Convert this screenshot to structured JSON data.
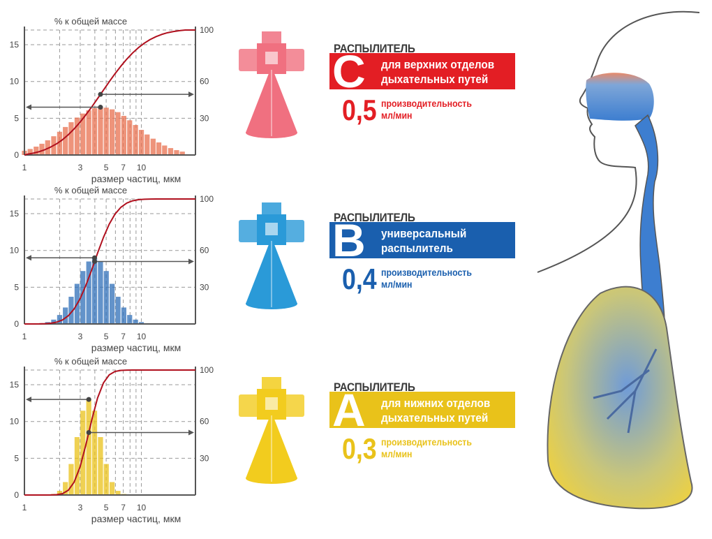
{
  "colors": {
    "red": "#e31e24",
    "blue": "#1a5fae",
    "yellow": "#e9c21a",
    "curve": "#b0101e",
    "axis": "#555555",
    "arrow": "#555555"
  },
  "chart_data": [
    {
      "type": "bar",
      "title": "% к общей массе",
      "xlabel": "размер частиц, мкм",
      "x_scale": "log",
      "xlim": [
        1,
        29
      ],
      "ylim": [
        0,
        17
      ],
      "x_ticks": [
        1,
        3,
        5,
        7,
        10
      ],
      "y_ticks_left": [
        0,
        5,
        10,
        15
      ],
      "y_ticks_right": [
        "30",
        "60",
        "100"
      ],
      "grid": true,
      "color": "#e8704f",
      "x": [
        1.0,
        1.12,
        1.26,
        1.41,
        1.58,
        1.78,
        2.0,
        2.24,
        2.51,
        2.82,
        3.16,
        3.55,
        3.98,
        4.47,
        5.01,
        5.62,
        6.31,
        7.08,
        7.94,
        8.91,
        10.0,
        11.2,
        12.6,
        14.1,
        15.8,
        17.8,
        20.0,
        22.4
      ],
      "values": [
        0.58,
        0.82,
        1.14,
        1.53,
        2.0,
        2.55,
        3.16,
        3.81,
        4.46,
        5.09,
        5.64,
        6.08,
        6.37,
        6.5,
        6.44,
        6.21,
        5.83,
        5.32,
        4.72,
        4.08,
        3.42,
        2.79,
        2.22,
        1.71,
        1.29,
        0.94,
        0.66,
        0.46
      ]
    },
    {
      "type": "bar",
      "title": "% к общей массе",
      "xlabel": "размер частиц, мкм",
      "x_scale": "log",
      "xlim": [
        1,
        29
      ],
      "ylim": [
        0,
        17
      ],
      "x_ticks": [
        1,
        3,
        5,
        7,
        10
      ],
      "y_ticks_left": [
        0,
        5,
        10,
        15
      ],
      "y_ticks_right": [
        "30",
        "60",
        "100"
      ],
      "grid": true,
      "color": "#2f6fb8",
      "x": [
        1.0,
        1.12,
        1.26,
        1.41,
        1.58,
        1.78,
        2.0,
        2.24,
        2.51,
        2.82,
        3.16,
        3.55,
        3.98,
        4.47,
        5.01,
        5.62,
        6.31,
        7.08,
        7.94,
        8.91,
        10.0,
        11.2,
        12.6,
        14.1
      ],
      "values": [
        0,
        0.01,
        0.03,
        0.1,
        0.25,
        0.59,
        1.22,
        2.24,
        3.7,
        5.46,
        7.2,
        8.5,
        9,
        8.5,
        7.2,
        5.46,
        3.7,
        2.24,
        1.22,
        0.59,
        0.25,
        0.1,
        0.03,
        0.01
      ]
    },
    {
      "type": "bar",
      "title": "% к общей массе",
      "xlabel": "размер частиц, мкм",
      "x_scale": "log",
      "xlim": [
        1,
        29
      ],
      "ylim": [
        0,
        17
      ],
      "x_ticks": [
        1,
        3,
        5,
        7,
        10
      ],
      "y_ticks_left": [
        0,
        5,
        10,
        15
      ],
      "y_ticks_right": [
        "30",
        "60",
        "100"
      ],
      "grid": true,
      "color": "#e9c21a",
      "x": [
        1.41,
        1.58,
        1.78,
        2.0,
        2.24,
        2.51,
        2.82,
        3.16,
        3.55,
        3.98,
        4.47,
        5.01,
        5.62,
        6.31,
        7.08,
        7.94
      ],
      "values": [
        0.004,
        0.03,
        0.14,
        0.57,
        1.76,
        4.22,
        7.88,
        11.47,
        13,
        11.47,
        7.88,
        4.22,
        1.76,
        0.57,
        0.14,
        0.03
      ]
    }
  ],
  "nozzles": [
    {
      "title": "РАСПЫЛИТЕЛЬ",
      "letter": "C",
      "desc1": "для верхних отделов",
      "desc2": "дыхательных путей",
      "rate": "0,5",
      "rate_label1": "производительность",
      "rate_label2": "мл/мин",
      "color": "#e31e24",
      "body": "#f07080"
    },
    {
      "title": "РАСПЫЛИТЕЛЬ",
      "letter": "B",
      "desc1": "универсальный",
      "desc2": "распылитель",
      "rate": "0,4",
      "rate_label1": "производительность",
      "rate_label2": "мл/мин",
      "color": "#1a5fae",
      "body": "#2a9ad8"
    },
    {
      "title": "РАСПЫЛИТЕЛЬ",
      "letter": "A",
      "desc1": "для нижних отделов",
      "desc2": "дыхательных путей",
      "rate": "0,3",
      "rate_label1": "производительность",
      "rate_label2": "мл/мин",
      "color": "#e9c21a",
      "body": "#f2cc1e"
    }
  ]
}
